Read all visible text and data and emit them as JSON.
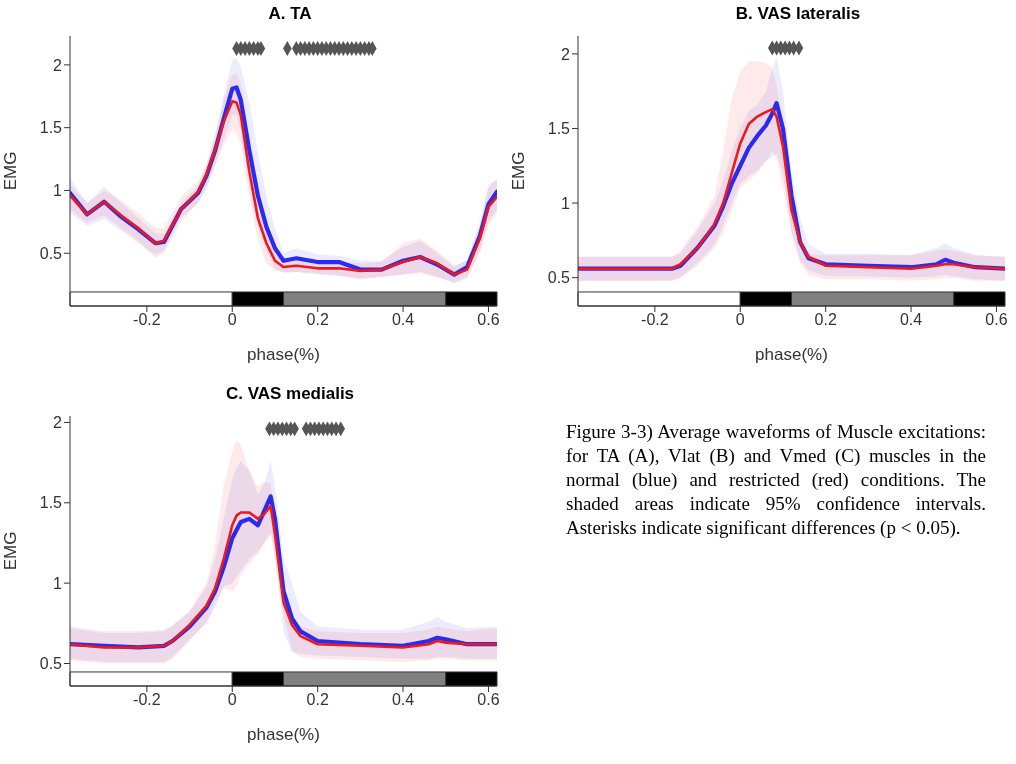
{
  "chart_data": [
    {
      "type": "line",
      "title": "A. TA",
      "xlabel": "phase(%)",
      "ylabel": "EMG",
      "xlim": [
        -0.38,
        0.62
      ],
      "xticks": [
        -0.2,
        0,
        0.2,
        0.4,
        0.6
      ],
      "ylim": [
        0.08,
        2.23
      ],
      "yticks": [
        0.5,
        1,
        1.5,
        2
      ],
      "x": [
        -0.38,
        -0.34,
        -0.3,
        -0.26,
        -0.22,
        -0.18,
        -0.16,
        -0.12,
        -0.08,
        -0.06,
        -0.04,
        -0.02,
        0,
        0.01,
        0.02,
        0.04,
        0.06,
        0.08,
        0.1,
        0.12,
        0.15,
        0.2,
        0.25,
        0.3,
        0.35,
        0.4,
        0.44,
        0.48,
        0.52,
        0.55,
        0.58,
        0.6,
        0.62
      ],
      "series": [
        {
          "color": "#2a2af0",
          "values": [
            0.98,
            0.81,
            0.91,
            0.79,
            0.69,
            0.58,
            0.59,
            0.85,
            0.98,
            1.12,
            1.32,
            1.57,
            1.81,
            1.82,
            1.72,
            1.32,
            0.96,
            0.71,
            0.54,
            0.44,
            0.46,
            0.43,
            0.43,
            0.37,
            0.37,
            0.44,
            0.47,
            0.41,
            0.33,
            0.39,
            0.64,
            0.89,
            0.99
          ],
          "lower": [
            0.82,
            0.72,
            0.77,
            0.68,
            0.58,
            0.49,
            0.52,
            0.78,
            0.9,
            1.02,
            1.2,
            1.4,
            1.6,
            1.6,
            1.48,
            1.05,
            0.72,
            0.52,
            0.38,
            0.34,
            0.35,
            0.33,
            0.32,
            0.3,
            0.31,
            0.33,
            0.35,
            0.31,
            0.27,
            0.31,
            0.52,
            0.75,
            0.85
          ],
          "upper": [
            1.1,
            0.9,
            1.03,
            0.9,
            0.78,
            0.66,
            0.66,
            0.9,
            1.04,
            1.2,
            1.45,
            1.75,
            2.04,
            2.05,
            1.98,
            1.7,
            1.3,
            0.95,
            0.7,
            0.5,
            0.54,
            0.49,
            0.48,
            0.44,
            0.44,
            0.55,
            0.6,
            0.5,
            0.39,
            0.45,
            0.75,
            1.05,
            1.08
          ]
        },
        {
          "color": "#f01818",
          "values": [
            0.96,
            0.81,
            0.91,
            0.8,
            0.7,
            0.58,
            0.6,
            0.85,
            0.99,
            1.13,
            1.33,
            1.55,
            1.71,
            1.7,
            1.6,
            1.15,
            0.78,
            0.58,
            0.44,
            0.39,
            0.4,
            0.38,
            0.38,
            0.36,
            0.37,
            0.43,
            0.47,
            0.42,
            0.33,
            0.37,
            0.62,
            0.87,
            0.95
          ],
          "lower": [
            0.85,
            0.74,
            0.8,
            0.7,
            0.6,
            0.46,
            0.5,
            0.75,
            0.9,
            1.03,
            1.2,
            1.36,
            1.48,
            1.46,
            1.35,
            0.95,
            0.6,
            0.42,
            0.36,
            0.35,
            0.35,
            0.34,
            0.32,
            0.29,
            0.31,
            0.33,
            0.34,
            0.31,
            0.26,
            0.3,
            0.5,
            0.72,
            0.82
          ],
          "upper": [
            1.05,
            0.9,
            1.0,
            0.92,
            0.82,
            0.7,
            0.7,
            0.95,
            1.07,
            1.22,
            1.43,
            1.72,
            1.92,
            1.93,
            1.85,
            1.4,
            0.95,
            0.68,
            0.5,
            0.43,
            0.45,
            0.43,
            0.43,
            0.42,
            0.43,
            0.58,
            0.62,
            0.52,
            0.4,
            0.44,
            0.72,
            1.02,
            1.1
          ]
        },
        {
          "type": "scatter",
          "color": "#555555",
          "marker": "diamond",
          "x": [
            0.01,
            0.02,
            0.03,
            0.04,
            0.05,
            0.06,
            0.067,
            0.129,
            0.15,
            0.16,
            0.17,
            0.18,
            0.19,
            0.2,
            0.21,
            0.22,
            0.23,
            0.24,
            0.25,
            0.26,
            0.27,
            0.28,
            0.29,
            0.3,
            0.31,
            0.32,
            0.328
          ],
          "values": [
            2.13,
            2.13,
            2.13,
            2.13,
            2.13,
            2.13,
            2.13,
            2.13,
            2.13,
            2.13,
            2.13,
            2.13,
            2.13,
            2.13,
            2.13,
            2.13,
            2.13,
            2.13,
            2.13,
            2.13,
            2.13,
            2.13,
            2.13,
            2.13,
            2.13,
            2.13,
            2.13
          ]
        }
      ],
      "bands": [
        {
          "axis": "x",
          "from": -0.38,
          "to": 0,
          "color": "#ffffff"
        },
        {
          "axis": "x",
          "from": 0,
          "to": 0.12,
          "color": "#000000"
        },
        {
          "axis": "x",
          "from": 0.12,
          "to": 0.5,
          "color": "#808080"
        },
        {
          "axis": "x",
          "from": 0.5,
          "to": 0.62,
          "color": "#000000"
        }
      ]
    },
    {
      "type": "line",
      "title": "B. VAS lateralis",
      "xlabel": "phase(%)",
      "ylabel": "EMG",
      "xlim": [
        -0.38,
        0.62
      ],
      "xticks": [
        -0.2,
        0,
        0.2,
        0.4,
        0.6
      ],
      "ylim": [
        0.31,
        2.12
      ],
      "yticks": [
        0.5,
        1,
        1.5,
        2
      ],
      "x": [
        -0.38,
        -0.3,
        -0.22,
        -0.16,
        -0.14,
        -0.1,
        -0.06,
        -0.04,
        -0.02,
        0,
        0.02,
        0.04,
        0.06,
        0.075,
        0.085,
        0.1,
        0.12,
        0.14,
        0.16,
        0.2,
        0.3,
        0.4,
        0.46,
        0.48,
        0.5,
        0.55,
        0.62
      ],
      "series": [
        {
          "color": "#2a2af0",
          "values": [
            0.56,
            0.56,
            0.56,
            0.56,
            0.58,
            0.7,
            0.85,
            0.98,
            1.13,
            1.25,
            1.37,
            1.45,
            1.52,
            1.6,
            1.67,
            1.5,
            1.05,
            0.74,
            0.63,
            0.59,
            0.58,
            0.57,
            0.59,
            0.62,
            0.6,
            0.57,
            0.56
          ],
          "lower": [
            0.48,
            0.48,
            0.48,
            0.48,
            0.5,
            0.6,
            0.72,
            0.85,
            1.0,
            1.13,
            1.18,
            1.22,
            1.28,
            1.31,
            1.33,
            1.2,
            0.8,
            0.62,
            0.55,
            0.51,
            0.51,
            0.5,
            0.51,
            0.52,
            0.51,
            0.49,
            0.48
          ],
          "upper": [
            0.64,
            0.64,
            0.64,
            0.64,
            0.66,
            0.82,
            1.0,
            1.15,
            1.35,
            1.5,
            1.62,
            1.66,
            1.75,
            1.9,
            1.98,
            1.75,
            1.2,
            0.9,
            0.72,
            0.66,
            0.66,
            0.65,
            0.7,
            0.73,
            0.7,
            0.65,
            0.64
          ]
        },
        {
          "color": "#f01818",
          "values": [
            0.56,
            0.56,
            0.56,
            0.56,
            0.59,
            0.7,
            0.86,
            1.0,
            1.2,
            1.4,
            1.53,
            1.58,
            1.61,
            1.63,
            1.58,
            1.38,
            0.95,
            0.74,
            0.64,
            0.58,
            0.57,
            0.56,
            0.58,
            0.59,
            0.59,
            0.57,
            0.56
          ],
          "lower": [
            0.48,
            0.48,
            0.48,
            0.48,
            0.5,
            0.58,
            0.7,
            0.8,
            0.95,
            1.1,
            1.15,
            1.2,
            1.28,
            1.35,
            1.3,
            1.1,
            0.8,
            0.6,
            0.52,
            0.49,
            0.49,
            0.48,
            0.49,
            0.5,
            0.5,
            0.48,
            0.48
          ],
          "upper": [
            0.64,
            0.64,
            0.64,
            0.64,
            0.68,
            0.84,
            1.05,
            1.35,
            1.7,
            1.88,
            1.95,
            1.95,
            1.94,
            1.9,
            1.8,
            1.45,
            1.0,
            0.75,
            0.66,
            0.65,
            0.65,
            0.65,
            0.68,
            0.69,
            0.68,
            0.65,
            0.64
          ]
        },
        {
          "type": "scatter",
          "color": "#555555",
          "marker": "diamond",
          "x": [
            0.075,
            0.085,
            0.095,
            0.105,
            0.115,
            0.125,
            0.1375
          ],
          "values": [
            2.04,
            2.04,
            2.04,
            2.04,
            2.04,
            2.04,
            2.04
          ]
        }
      ],
      "bands": [
        {
          "axis": "x",
          "from": -0.38,
          "to": 0,
          "color": "#ffffff"
        },
        {
          "axis": "x",
          "from": 0,
          "to": 0.12,
          "color": "#000000"
        },
        {
          "axis": "x",
          "from": 0.12,
          "to": 0.5,
          "color": "#808080"
        },
        {
          "axis": "x",
          "from": 0.5,
          "to": 0.62,
          "color": "#000000"
        }
      ]
    },
    {
      "type": "line",
      "title": "C. VAS medialis",
      "xlabel": "phase(%)",
      "ylabel": "EMG",
      "xlim": [
        -0.38,
        0.62
      ],
      "xticks": [
        -0.2,
        0,
        0.2,
        0.4,
        0.6
      ],
      "ylim": [
        0.36,
        2.04
      ],
      "yticks": [
        0.5,
        1,
        1.5,
        2
      ],
      "x": [
        -0.38,
        -0.3,
        -0.22,
        -0.16,
        -0.14,
        -0.1,
        -0.06,
        -0.04,
        -0.02,
        0,
        0.01,
        0.02,
        0.04,
        0.06,
        0.075,
        0.09,
        0.1,
        0.12,
        0.14,
        0.16,
        0.2,
        0.3,
        0.4,
        0.46,
        0.48,
        0.5,
        0.55,
        0.62
      ],
      "series": [
        {
          "color": "#2a2af0",
          "values": [
            0.62,
            0.61,
            0.6,
            0.61,
            0.64,
            0.73,
            0.85,
            0.95,
            1.1,
            1.28,
            1.33,
            1.38,
            1.4,
            1.36,
            1.45,
            1.54,
            1.4,
            0.95,
            0.78,
            0.7,
            0.64,
            0.62,
            0.61,
            0.64,
            0.66,
            0.65,
            0.62,
            0.62
          ],
          "lower": [
            0.53,
            0.51,
            0.51,
            0.51,
            0.54,
            0.65,
            0.75,
            0.85,
            0.98,
            1.0,
            1.04,
            1.08,
            1.15,
            1.2,
            1.25,
            1.3,
            1.15,
            0.7,
            0.57,
            0.56,
            0.55,
            0.54,
            0.53,
            0.53,
            0.54,
            0.54,
            0.53,
            0.53
          ],
          "upper": [
            0.73,
            0.7,
            0.7,
            0.71,
            0.74,
            0.82,
            0.98,
            1.15,
            1.4,
            1.65,
            1.72,
            1.76,
            1.7,
            1.55,
            1.62,
            1.76,
            1.6,
            1.15,
            1.0,
            0.82,
            0.73,
            0.71,
            0.71,
            0.76,
            0.79,
            0.76,
            0.72,
            0.73
          ]
        },
        {
          "color": "#f01818",
          "values": [
            0.62,
            0.6,
            0.6,
            0.61,
            0.64,
            0.74,
            0.86,
            0.97,
            1.15,
            1.36,
            1.42,
            1.44,
            1.44,
            1.4,
            1.43,
            1.48,
            1.3,
            0.88,
            0.74,
            0.67,
            0.62,
            0.61,
            0.6,
            0.62,
            0.64,
            0.63,
            0.62,
            0.62
          ],
          "lower": [
            0.52,
            0.5,
            0.5,
            0.5,
            0.53,
            0.64,
            0.76,
            0.88,
            0.97,
            0.95,
            0.98,
            1.05,
            1.12,
            1.18,
            1.25,
            1.32,
            1.2,
            0.8,
            0.58,
            0.54,
            0.53,
            0.52,
            0.51,
            0.52,
            0.53,
            0.53,
            0.52,
            0.52
          ],
          "upper": [
            0.72,
            0.69,
            0.69,
            0.7,
            0.73,
            0.83,
            1.0,
            1.25,
            1.6,
            1.82,
            1.89,
            1.86,
            1.7,
            1.6,
            1.63,
            1.62,
            1.4,
            0.9,
            0.78,
            0.73,
            0.7,
            0.69,
            0.69,
            0.71,
            0.73,
            0.72,
            0.7,
            0.72
          ]
        },
        {
          "type": "scatter",
          "color": "#555555",
          "marker": "diamond",
          "x": [
            0.087,
            0.097,
            0.107,
            0.117,
            0.127,
            0.137,
            0.146,
            0.173,
            0.183,
            0.193,
            0.203,
            0.213,
            0.223,
            0.233,
            0.243,
            0.254
          ],
          "values": [
            1.96,
            1.96,
            1.96,
            1.96,
            1.96,
            1.96,
            1.96,
            1.96,
            1.96,
            1.96,
            1.96,
            1.96,
            1.96,
            1.96,
            1.96,
            1.96
          ]
        }
      ],
      "bands": [
        {
          "axis": "x",
          "from": -0.38,
          "to": 0,
          "color": "#ffffff"
        },
        {
          "axis": "x",
          "from": 0,
          "to": 0.12,
          "color": "#000000"
        },
        {
          "axis": "x",
          "from": 0.12,
          "to": 0.5,
          "color": "#808080"
        },
        {
          "axis": "x",
          "from": 0.5,
          "to": 0.62,
          "color": "#000000"
        }
      ]
    },
    {
      "type": "other",
      "annotations": [
        "Figure 3-3) Average waveforms of Muscle excitations: for TA (A), Vlat (B) and Vmed (C) muscles in the normal (blue) and restricted (red) conditions. The shaded areas indicate 95% confidence intervals. Asterisks indicate significant differences (p < 0.05)."
      ]
    }
  ]
}
